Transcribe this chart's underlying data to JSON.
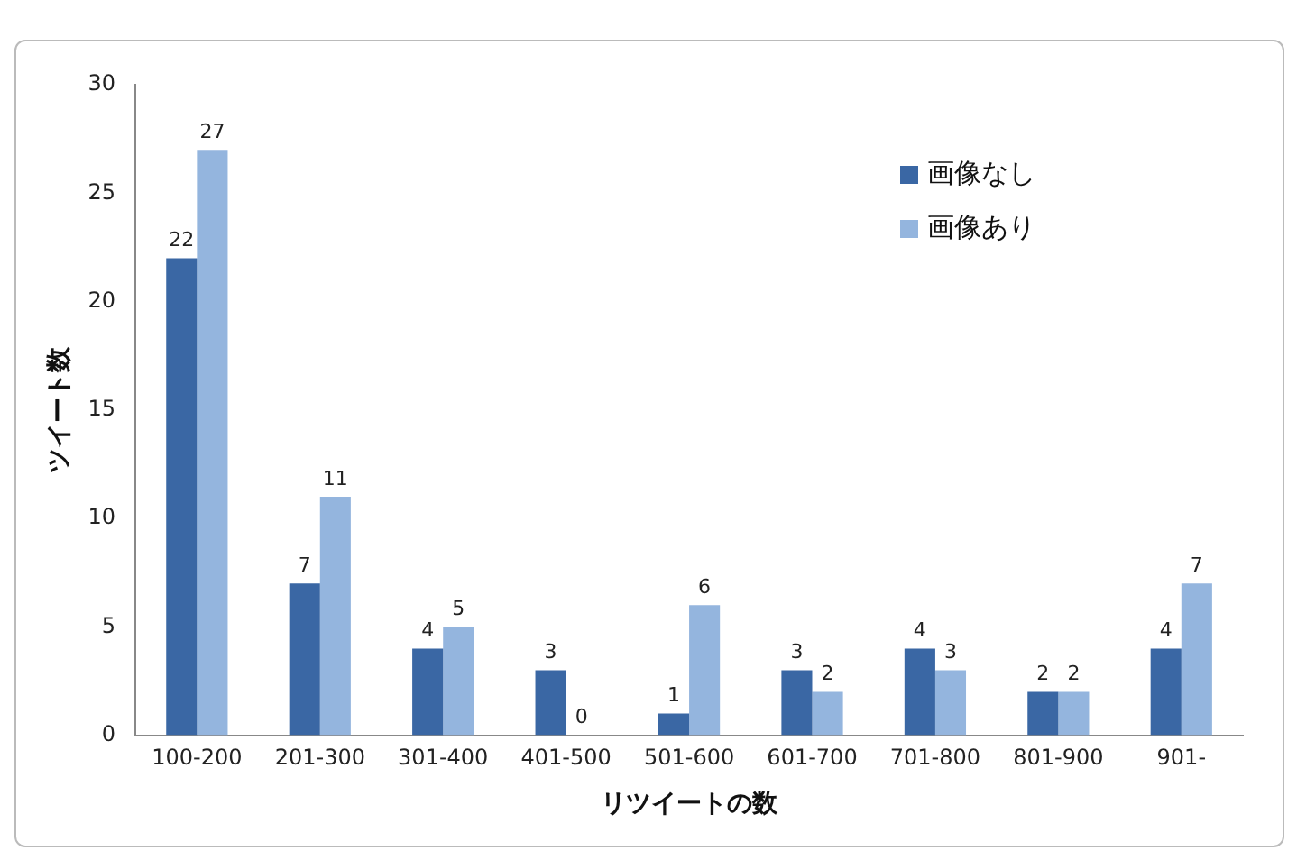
{
  "chart_data": {
    "type": "bar",
    "xlabel": "リツイートの数",
    "ylabel": "ツイート数",
    "categories": [
      "100-200",
      "201-300",
      "301-400",
      "401-500",
      "501-600",
      "601-700",
      "701-800",
      "801-900",
      "901-"
    ],
    "series": [
      {
        "name": "画像なし",
        "color": "#3a67a4",
        "values": [
          22,
          7,
          4,
          3,
          1,
          3,
          4,
          2,
          4
        ]
      },
      {
        "name": "画像あり",
        "color": "#94b5de",
        "values": [
          27,
          11,
          5,
          0,
          6,
          2,
          3,
          2,
          7
        ]
      }
    ],
    "ylim": [
      0,
      30
    ],
    "yticks": [
      0,
      5,
      10,
      15,
      20,
      25,
      30
    ],
    "grid": false,
    "legend": "top right",
    "data_labels": true
  }
}
